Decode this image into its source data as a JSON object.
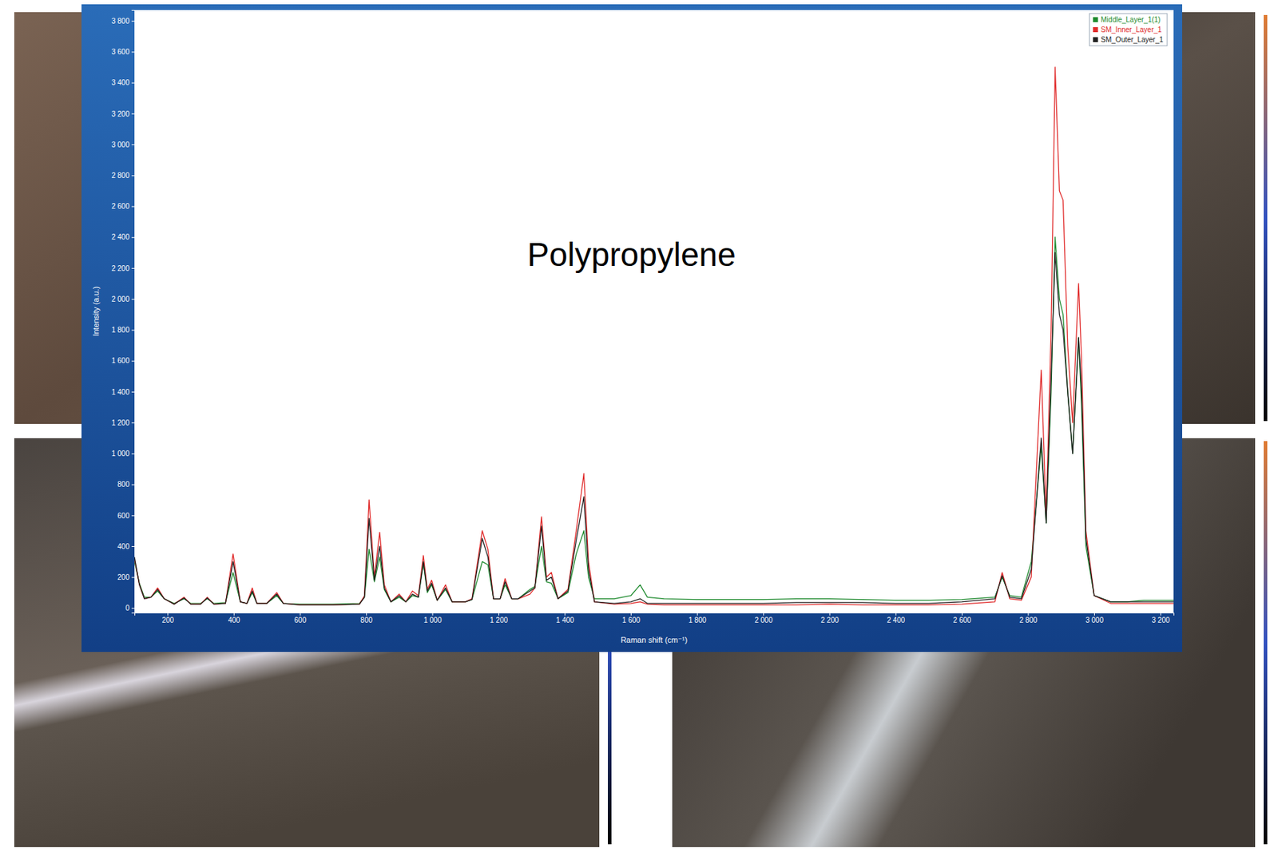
{
  "chart_data": {
    "type": "line",
    "annotation": "Polypropylene",
    "x_label": "Raman shift (cm⁻¹)",
    "y_label": "Intensity (a.u.)",
    "xlim": [
      100,
      3240
    ],
    "ylim": [
      -30,
      3870
    ],
    "xticks": [
      200,
      400,
      600,
      800,
      {
        "value": 1000,
        "label": "1 000"
      },
      {
        "value": 1200,
        "label": "1 200"
      },
      {
        "value": 1400,
        "label": "1 400"
      },
      {
        "value": 1600,
        "label": "1 600"
      },
      {
        "value": 1800,
        "label": "1 800"
      },
      {
        "value": 2000,
        "label": "2 000"
      },
      {
        "value": 2200,
        "label": "2 200"
      },
      {
        "value": 2400,
        "label": "2 400"
      },
      {
        "value": 2600,
        "label": "2 600"
      },
      {
        "value": 2800,
        "label": "2 800"
      },
      {
        "value": 3000,
        "label": "3 000"
      },
      {
        "value": 3200,
        "label": "3 200"
      }
    ],
    "yticks": [
      0,
      200,
      400,
      600,
      800,
      {
        "value": 1000,
        "label": "1 000"
      },
      {
        "value": 1200,
        "label": "1 200"
      },
      {
        "value": 1400,
        "label": "1 400"
      },
      {
        "value": 1600,
        "label": "1 600"
      },
      {
        "value": 1800,
        "label": "1 800"
      },
      {
        "value": 2000,
        "label": "2 000"
      },
      {
        "value": 2200,
        "label": "2 200"
      },
      {
        "value": 2400,
        "label": "2 400"
      },
      {
        "value": 2600,
        "label": "2 600"
      },
      {
        "value": 2800,
        "label": "2 800"
      },
      {
        "value": 3000,
        "label": "3 000"
      },
      {
        "value": 3200,
        "label": "3 200"
      },
      {
        "value": 3400,
        "label": "3 400"
      },
      {
        "value": 3600,
        "label": "3 600"
      },
      {
        "value": 3800,
        "label": "3 800"
      }
    ],
    "legend": "upper right",
    "x": [
      100,
      115,
      130,
      150,
      170,
      190,
      220,
      250,
      270,
      300,
      320,
      340,
      375,
      398,
      420,
      440,
      456,
      470,
      500,
      530,
      550,
      600,
      700,
      780,
      795,
      809,
      825,
      841,
      855,
      875,
      900,
      920,
      940,
      958,
      973,
      985,
      998,
      1015,
      1040,
      1060,
      1100,
      1120,
      1151,
      1168,
      1185,
      1205,
      1220,
      1240,
      1260,
      1295,
      1310,
      1330,
      1345,
      1360,
      1380,
      1410,
      1435,
      1458,
      1472,
      1490,
      1550,
      1600,
      1628,
      1650,
      1700,
      1800,
      1900,
      2000,
      2100,
      2200,
      2300,
      2400,
      2500,
      2600,
      2700,
      2722,
      2745,
      2780,
      2810,
      2840,
      2855,
      2870,
      2882,
      2895,
      2906,
      2920,
      2935,
      2953,
      2962,
      2975,
      3000,
      3050,
      3100,
      3150,
      3240
    ],
    "series": [
      {
        "name": "Middle_Layer_1(1)",
        "color": "#1e8a2e",
        "marker": "square",
        "values": [
          300,
          160,
          70,
          70,
          110,
          60,
          30,
          60,
          30,
          30,
          60,
          30,
          35,
          230,
          40,
          30,
          100,
          30,
          30,
          80,
          30,
          25,
          25,
          30,
          70,
          380,
          170,
          330,
          120,
          40,
          70,
          40,
          80,
          70,
          290,
          100,
          150,
          50,
          120,
          40,
          40,
          55,
          300,
          280,
          60,
          60,
          150,
          60,
          60,
          120,
          140,
          400,
          170,
          160,
          60,
          100,
          350,
          500,
          200,
          60,
          60,
          80,
          150,
          70,
          60,
          55,
          55,
          55,
          60,
          60,
          55,
          50,
          50,
          55,
          70,
          200,
          80,
          70,
          300,
          1050,
          550,
          1400,
          2400,
          2000,
          1900,
          1400,
          1000,
          1750,
          1300,
          400,
          80,
          40,
          40,
          50,
          50
        ]
      },
      {
        "name": "SM_Inner_Layer_1",
        "color": "#e02a2a",
        "marker": "square",
        "values": [
          320,
          150,
          60,
          70,
          130,
          60,
          25,
          70,
          25,
          25,
          70,
          25,
          30,
          350,
          40,
          30,
          130,
          30,
          30,
          100,
          30,
          20,
          20,
          25,
          80,
          700,
          200,
          490,
          150,
          40,
          90,
          40,
          110,
          80,
          340,
          120,
          180,
          50,
          150,
          40,
          40,
          60,
          500,
          380,
          60,
          60,
          190,
          60,
          60,
          90,
          130,
          590,
          200,
          230,
          60,
          120,
          500,
          870,
          300,
          40,
          25,
          30,
          40,
          25,
          20,
          20,
          20,
          20,
          20,
          25,
          20,
          20,
          20,
          25,
          40,
          230,
          60,
          50,
          200,
          1540,
          600,
          1800,
          3500,
          2700,
          2640,
          1700,
          1200,
          2100,
          1600,
          500,
          80,
          30,
          30,
          30,
          30
        ]
      },
      {
        "name": "SM_Outer_Layer_1",
        "color": "#222222",
        "marker": "square",
        "values": [
          330,
          150,
          60,
          70,
          120,
          60,
          25,
          65,
          25,
          25,
          65,
          25,
          30,
          300,
          40,
          30,
          110,
          30,
          30,
          90,
          30,
          20,
          20,
          25,
          70,
          580,
          180,
          400,
          130,
          40,
          80,
          40,
          90,
          70,
          300,
          110,
          160,
          50,
          130,
          40,
          40,
          55,
          450,
          330,
          60,
          60,
          170,
          60,
          60,
          110,
          130,
          530,
          180,
          200,
          60,
          110,
          440,
          720,
          250,
          40,
          30,
          40,
          60,
          30,
          30,
          30,
          30,
          30,
          35,
          35,
          35,
          30,
          30,
          40,
          60,
          210,
          70,
          60,
          250,
          1100,
          550,
          1500,
          2300,
          1900,
          1800,
          1400,
          1000,
          1750,
          1400,
          450,
          80,
          40,
          40,
          40,
          40
        ]
      }
    ]
  }
}
